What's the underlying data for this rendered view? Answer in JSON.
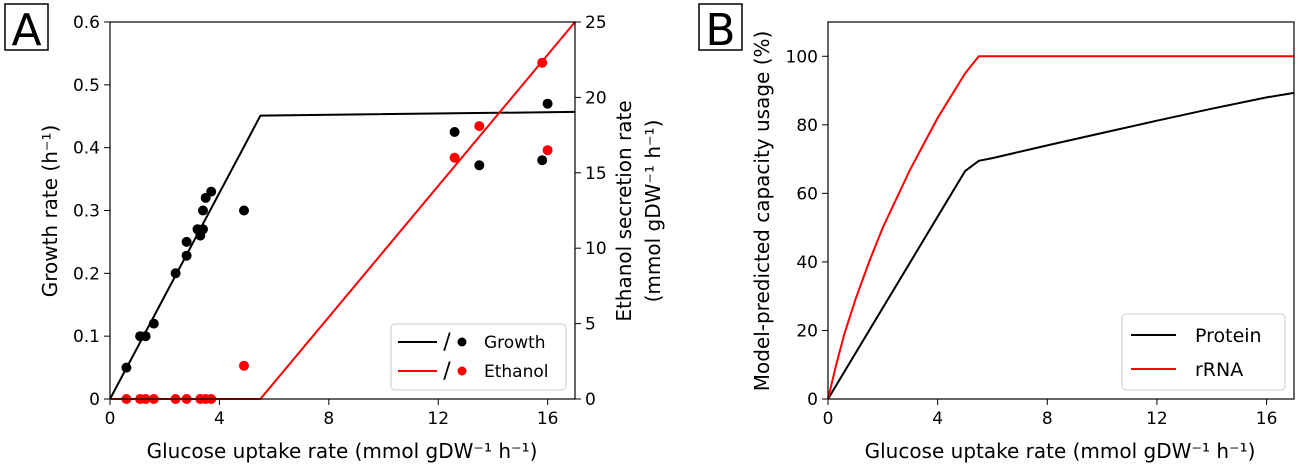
{
  "chart_data": [
    {
      "panel_label": "A",
      "type": "line+scatter",
      "xlabel": "Glucose uptake rate (mmol gDW⁻¹ h⁻¹)",
      "ylabel": "Growth rate (h⁻¹)",
      "y2label_line1": "Ethanol secretion rate",
      "y2label_line2": "(mmol gDW⁻¹ h⁻¹)",
      "xlim": [
        0,
        17
      ],
      "ylim": [
        0,
        0.6
      ],
      "y2lim": [
        0,
        25
      ],
      "xticks": [
        0,
        4,
        8,
        12,
        16
      ],
      "yticks": [
        0,
        0.1,
        0.2,
        0.3,
        0.4,
        0.5,
        0.6
      ],
      "ytick_labels": [
        "0",
        "0.1",
        "0.2",
        "0.3",
        "0.4",
        "0.5",
        "0.6"
      ],
      "y2ticks": [
        0,
        5,
        10,
        15,
        20,
        25
      ],
      "legend_position": "lower-right",
      "legend": [
        {
          "label": "Growth",
          "color": "#000000"
        },
        {
          "label": "Ethanol",
          "color": "#ff0000"
        }
      ],
      "series": [
        {
          "name": "Growth",
          "kind": "line",
          "axis": "left",
          "color": "#000000",
          "x": [
            0,
            1,
            2,
            3,
            4,
            5,
            5.5,
            17
          ],
          "y": [
            0,
            0.082,
            0.164,
            0.246,
            0.328,
            0.41,
            0.451,
            0.457
          ]
        },
        {
          "name": "Ethanol",
          "kind": "line",
          "axis": "right",
          "color": "#ff0000",
          "x": [
            0,
            5.5,
            17
          ],
          "y": [
            0,
            0,
            25
          ]
        },
        {
          "name": "Growth",
          "kind": "points",
          "axis": "left",
          "color": "#000000",
          "x": [
            0.6,
            1.1,
            1.3,
            1.6,
            2.4,
            2.8,
            2.8,
            3.2,
            3.3,
            3.3,
            3.4,
            3.4,
            3.5,
            3.7,
            4.9,
            12.6,
            13.5,
            15.8,
            16
          ],
          "y": [
            0.05,
            0.1,
            0.1,
            0.12,
            0.2,
            0.228,
            0.25,
            0.27,
            0.265,
            0.26,
            0.27,
            0.3,
            0.32,
            0.33,
            0.3,
            0.425,
            0.372,
            0.38,
            0.47
          ]
        },
        {
          "name": "Ethanol",
          "kind": "points",
          "axis": "right",
          "color": "#ff0000",
          "x": [
            0.6,
            1.1,
            1.3,
            1.6,
            2.4,
            2.8,
            3.3,
            3.5,
            3.7,
            4.9,
            12.6,
            13.5,
            15.8,
            16
          ],
          "y": [
            0,
            0,
            0,
            0,
            0,
            0,
            0,
            0,
            0,
            2.2,
            16,
            18.1,
            22.3,
            16.5
          ]
        }
      ]
    },
    {
      "panel_label": "B",
      "type": "line",
      "xlabel": "Glucose uptake rate (mmol gDW⁻¹ h⁻¹)",
      "ylabel": "Model-predicted capacity usage (%)",
      "xlim": [
        0,
        17
      ],
      "ylim": [
        0,
        110
      ],
      "xticks": [
        0,
        4,
        8,
        12,
        16
      ],
      "yticks": [
        0,
        20,
        40,
        60,
        80,
        100
      ],
      "legend_position": "lower-right",
      "series": [
        {
          "name": "Protein",
          "color": "#000000",
          "x": [
            0,
            1,
            2,
            3,
            4,
            5,
            5.5,
            6,
            8,
            10,
            12,
            14,
            16,
            17
          ],
          "y": [
            0,
            13.3,
            26.6,
            39.9,
            53.2,
            66.5,
            69.5,
            70.3,
            74,
            77.6,
            81.2,
            84.7,
            88,
            89.3
          ]
        },
        {
          "name": "rRNA",
          "color": "#ff0000",
          "x": [
            0,
            0.3,
            0.6,
            1,
            1.5,
            2,
            3,
            4,
            5,
            5.5,
            6,
            10,
            17
          ],
          "y": [
            0,
            10,
            19,
            29,
            40,
            50,
            67,
            82,
            95,
            100,
            100,
            100,
            100
          ]
        }
      ]
    }
  ]
}
